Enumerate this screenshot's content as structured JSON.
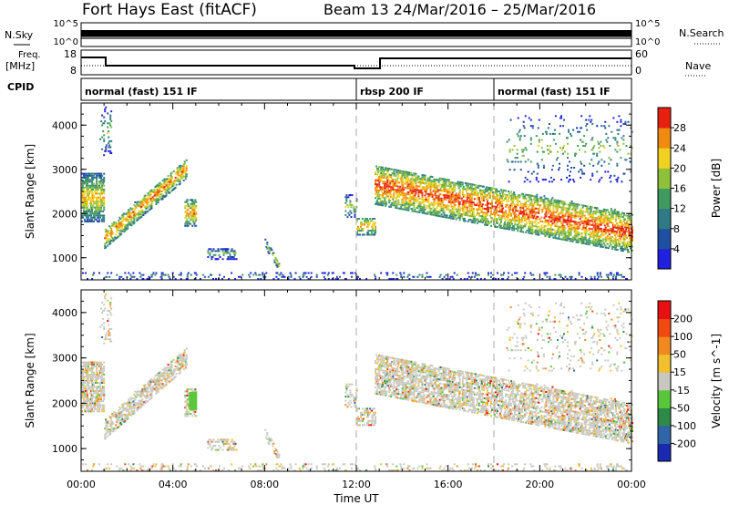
{
  "header": {
    "title": "Fort Hays East (fitACF)",
    "beam_info": "Beam 13  24/Mar/2016 – 25/Mar/2016"
  },
  "panel_labels": {
    "nsky": "N.Sky",
    "nsky_ticks": [
      "10^5",
      "10^0"
    ],
    "nsearch": "N.Search",
    "nsearch_ticks": [
      "10^5",
      "10^0"
    ],
    "freq_top": "Freq.",
    "freq_unit": "[MHz]",
    "freq_ticks": [
      "18",
      "8"
    ],
    "nave": "Nave",
    "nave_ticks": [
      "60",
      "0"
    ],
    "cpid": "CPID"
  },
  "cpid_segments": [
    {
      "label": "normal (fast) 151 IF",
      "start_hour": 0
    },
    {
      "label": "rbsp 200 IF",
      "start_hour": 12
    },
    {
      "label": "normal (fast) 151 IF",
      "start_hour": 18
    }
  ],
  "chart_data": [
    {
      "type": "heatmap",
      "title": "Power",
      "ylabel": "Slant Range [km]",
      "xlabel": "Time UT",
      "x_ticks": [
        "00:00",
        "04:00",
        "08:00",
        "12:00",
        "16:00",
        "20:00",
        "00:00"
      ],
      "y_ticks": [
        1000,
        2000,
        3000,
        4000
      ],
      "ylim": [
        500,
        4500
      ],
      "xlim_hours": [
        0,
        24
      ],
      "colorbar_label": "Power [dB]",
      "colorbar_ticks": [
        4,
        8,
        12,
        16,
        20,
        24,
        28
      ],
      "colorbar_colors": [
        "#2020e0",
        "#1f4fa0",
        "#2f7a85",
        "#3f9a60",
        "#8fc03a",
        "#f0d020",
        "#f08a10",
        "#e82010"
      ],
      "dashed_vertical_lines_hours": [
        12,
        18
      ]
    },
    {
      "type": "heatmap",
      "title": "Velocity",
      "ylabel": "Slant Range [km]",
      "xlabel": "Time UT",
      "x_ticks": [
        "00:00",
        "04:00",
        "08:00",
        "12:00",
        "16:00",
        "20:00",
        "00:00"
      ],
      "y_ticks": [
        1000,
        2000,
        3000,
        4000
      ],
      "ylim": [
        500,
        4500
      ],
      "xlim_hours": [
        0,
        24
      ],
      "colorbar_label": "Velocity [m s^-1]",
      "colorbar_ticks": [
        "200",
        "100",
        "50",
        "15",
        "-15",
        "-50",
        "-100",
        "-200"
      ],
      "colorbar_colors": [
        "#1a2ab0",
        "#2f66a8",
        "#2d8a48",
        "#58c83a",
        "#c8c8c0",
        "#f0c030",
        "#f08a20",
        "#f04a10",
        "#e81010"
      ],
      "dashed_vertical_lines_hours": [
        12,
        18
      ]
    }
  ]
}
